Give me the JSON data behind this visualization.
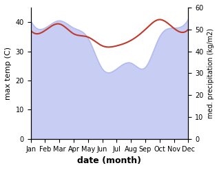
{
  "months": [
    "Jan",
    "Feb",
    "Mar",
    "Apr",
    "May",
    "Jun",
    "Jul",
    "Aug",
    "Sep",
    "Oct",
    "Nov",
    "Dec"
  ],
  "max_temp": [
    40.5,
    38.0,
    40.5,
    38.0,
    34.5,
    24.0,
    24.0,
    26.0,
    24.5,
    35.0,
    38.0,
    41.0
  ],
  "med_precip": [
    49.5,
    49.5,
    52.5,
    48.0,
    46.5,
    42.5,
    42.5,
    45.0,
    50.0,
    54.5,
    50.5,
    50.0
  ],
  "temp_fill_color": "#b0b8ee",
  "precip_color": "#c0392b",
  "temp_ylim": [
    0,
    45
  ],
  "precip_ylim": [
    0,
    60
  ],
  "xlabel": "date (month)",
  "ylabel_left": "max temp (C)",
  "ylabel_right": "med. precipitation (kg/m2)",
  "bg_color": "#ffffff",
  "temp_yticks": [
    0,
    10,
    20,
    30,
    40
  ],
  "precip_yticks": [
    0,
    10,
    20,
    30,
    40,
    50,
    60
  ]
}
